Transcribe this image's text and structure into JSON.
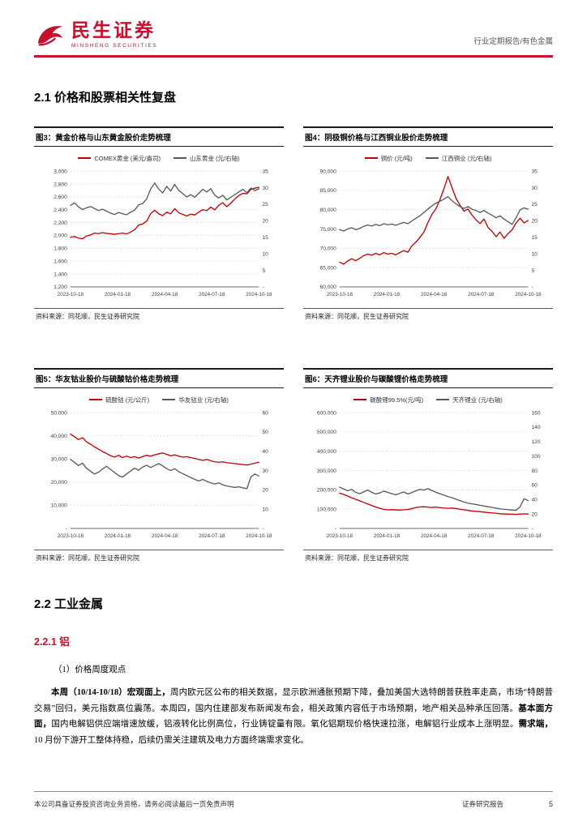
{
  "header": {
    "brand_cn": "民生证券",
    "brand_en": "MINSHENG SECURITIES",
    "report_type": "行业定期报告/有色金属"
  },
  "sections": {
    "s21_title": "2.1 价格和股票相关性复盘",
    "s22_title": "2.2 工业金属",
    "s221_title": "2.2.1 铝",
    "point_title": "（1）价格周度观点"
  },
  "paragraph": {
    "segments": [
      {
        "text": "本周（10/14-10/18）宏观面上，",
        "bold": true
      },
      {
        "text": "周内欧元区公布的相关数据，显示欧洲通胀预期下降，叠加美国大选特朗普获胜率走高，市场“特朗普交易”回归，美元指数高位震荡。本周四，国内住建部发布新闻发布会，相关政策内容低于市场预期，地产相关品种承压回落。",
        "bold": false
      },
      {
        "text": "基本面方面，",
        "bold": true
      },
      {
        "text": "国内电解铝供应端增速放缓，铝液转化比例高位，行业铸锭量有限。氧化铝期现价格快速拉涨，电解铝行业成本上涨明显。",
        "bold": false
      },
      {
        "text": "需求端，",
        "bold": true
      },
      {
        "text": "10 月份下游开工整体持稳，后续仍需关注建筑及电力方面终端需求变化。",
        "bold": false
      }
    ]
  },
  "footer": {
    "left": "本公司具备证券投资咨询业务资格，请务必阅读最后一页免责声明",
    "right": "证券研究报告",
    "page": "5"
  },
  "chart_data": [
    {
      "type": "line",
      "title": "图3：黄金价格与山东黄金股价走势梳理",
      "source": "资料来源：同花顺，民生证券研究院",
      "x_labels": [
        "2023-10-18",
        "2024-01-18",
        "2024-04-18",
        "2024-07-18",
        "2024-10-18"
      ],
      "left_axis": {
        "min": 1200,
        "max": 3000,
        "ticks": [
          "3,000",
          "2,800",
          "2,600",
          "2,400",
          "2,200",
          "2,000",
          "1,800",
          "1,600",
          "1,400",
          "1,200"
        ]
      },
      "right_axis": {
        "min": 0,
        "max": 35,
        "ticks": [
          "35",
          "30",
          "25",
          "20",
          "15",
          "10",
          "5",
          "-"
        ]
      },
      "series": [
        {
          "name": "COMEX黄金 (美元/盎司)",
          "color": "#C00000",
          "axis": "left",
          "values": [
            1972,
            1984,
            1958,
            1948,
            1992,
            2008,
            2036,
            2028,
            2044,
            2032,
            2026,
            2018,
            2028,
            2036,
            2024,
            2052,
            2088,
            2162,
            2178,
            2222,
            2338,
            2392,
            2336,
            2308,
            2362,
            2336,
            2418,
            2352,
            2328,
            2302,
            2332,
            2318,
            2362,
            2402,
            2386,
            2442,
            2398,
            2472,
            2508,
            2448,
            2502,
            2568,
            2622,
            2654,
            2648,
            2716,
            2736,
            2748
          ]
        },
        {
          "name": "山东黄金 (元/右轴)",
          "color": "#595959",
          "axis": "right",
          "values": [
            24.6,
            25.4,
            24.2,
            23.4,
            23.9,
            24.3,
            23.7,
            23.1,
            23.5,
            22.9,
            22.3,
            21.9,
            22.5,
            22.1,
            21.8,
            22.6,
            23.2,
            24.8,
            25.2,
            26.6,
            29.6,
            31.4,
            29.6,
            28.4,
            30.4,
            29.0,
            31.0,
            29.2,
            28.2,
            27.2,
            27.9,
            27.1,
            28.3,
            29.5,
            28.7,
            29.7,
            27.7,
            26.9,
            27.7,
            26.3,
            27.1,
            27.9,
            28.7,
            29.5,
            28.5,
            29.9,
            29.1,
            29.7
          ]
        }
      ]
    },
    {
      "type": "line",
      "title": "图4：阴极铜价格与江西铜业股价走势梳理",
      "source": "资料来源：同花顺，民生证券研究院",
      "x_labels": [
        "2023-10-18",
        "2024-01-18",
        "2024-04-18",
        "2024-07-18",
        "2024-10-18"
      ],
      "left_axis": {
        "min": 60000,
        "max": 90000,
        "ticks": [
          "90,000",
          "85,000",
          "80,000",
          "75,000",
          "70,000",
          "65,000",
          "60,000"
        ]
      },
      "right_axis": {
        "min": 0,
        "max": 35,
        "ticks": [
          "35",
          "30",
          "25",
          "20",
          "15",
          "10",
          "5",
          "-"
        ]
      },
      "series": [
        {
          "name": "铜价 (元/吨)",
          "color": "#C00000",
          "axis": "left",
          "values": [
            66400,
            65900,
            66700,
            67300,
            66800,
            67400,
            68100,
            68500,
            68200,
            68700,
            68300,
            68900,
            68500,
            68700,
            68300,
            68900,
            69400,
            69000,
            70600,
            71600,
            72800,
            74200,
            76600,
            78800,
            80200,
            82600,
            85400,
            88600,
            85800,
            83000,
            81200,
            79600,
            80200,
            78600,
            77400,
            76400,
            77600,
            75400,
            74400,
            73000,
            74200,
            72600,
            73800,
            74800,
            76600,
            77800,
            76600,
            77200
          ]
        },
        {
          "name": "江西铜业 (元/右轴)",
          "color": "#595959",
          "axis": "right",
          "values": [
            17.3,
            16.9,
            17.5,
            17.9,
            17.3,
            17.7,
            18.3,
            18.7,
            18.4,
            18.9,
            18.5,
            19.1,
            18.8,
            19.0,
            18.6,
            19.1,
            19.5,
            19.1,
            19.9,
            20.7,
            21.5,
            22.5,
            23.5,
            24.5,
            25.3,
            25.9,
            26.5,
            27.3,
            26.1,
            25.1,
            24.3,
            23.7,
            24.3,
            23.5,
            23.1,
            22.5,
            23.1,
            22.3,
            21.7,
            20.9,
            21.5,
            20.5,
            19.7,
            18.9,
            20.9,
            23.3,
            23.9,
            23.5
          ]
        }
      ]
    },
    {
      "type": "line",
      "title": "图5：华友钴业股价与硫酸钴价格走势梳理",
      "source": "资料来源：同花顺，民生证券研究院",
      "x_labels": [
        "2023-10-18",
        "2024-01-18",
        "2024-04-18",
        "2024-07-18",
        "2024-10-18"
      ],
      "left_axis": {
        "min": 0,
        "max": 50000,
        "ticks": [
          "50,000",
          "40,000",
          "30,000",
          "20,000",
          "10,000",
          "-"
        ]
      },
      "right_axis": {
        "min": 0,
        "max": 60,
        "ticks": [
          "60",
          "50",
          "40",
          "30",
          "20",
          "10",
          "-"
        ]
      },
      "series": [
        {
          "name": "硫酸钴 (元/公斤)",
          "color": "#C00000",
          "axis": "left",
          "values": [
            40800,
            39600,
            38400,
            39200,
            37400,
            36400,
            35200,
            34200,
            33200,
            32400,
            31400,
            30800,
            31600,
            30600,
            31200,
            30600,
            31000,
            30400,
            31000,
            31600,
            31200,
            31800,
            32200,
            32600,
            32000,
            31400,
            31800,
            31200,
            30800,
            31000,
            30600,
            30200,
            29800,
            29400,
            29800,
            29200,
            28800,
            28600,
            28800,
            28400,
            28200,
            28000,
            27800,
            27600,
            27400,
            27800,
            28200,
            28600
          ]
        },
        {
          "name": "华友钴业 (元/右轴)",
          "color": "#595959",
          "axis": "right",
          "values": [
            35.8,
            34.2,
            32.6,
            33.8,
            31.2,
            29.6,
            28.2,
            29.2,
            30.8,
            32.2,
            30.6,
            29.0,
            27.4,
            26.6,
            28.2,
            29.8,
            31.2,
            30.2,
            31.8,
            32.8,
            31.6,
            32.6,
            33.6,
            32.4,
            31.0,
            30.0,
            31.0,
            29.4,
            28.4,
            27.4,
            26.4,
            25.4,
            24.6,
            25.4,
            24.4,
            23.6,
            23.0,
            23.6,
            22.6,
            22.0,
            21.6,
            21.2,
            21.6,
            21.0,
            20.6,
            26.8,
            28.2,
            27.2
          ]
        }
      ]
    },
    {
      "type": "line",
      "title": "图6：天齐锂业股价与碳酸锂价格走势梳理",
      "source": "资料来源：同花顺，民生证券研究院",
      "x_labels": [
        "2023-10-18",
        "2024-01-18",
        "2024-04-18",
        "2024-07-18",
        "2024-10-18"
      ],
      "left_axis": {
        "min": 0,
        "max": 600000,
        "ticks": [
          "600,000",
          "500,000",
          "400,000",
          "300,000",
          "200,000",
          "100,000",
          "-"
        ]
      },
      "right_axis": {
        "min": 0,
        "max": 160,
        "ticks": [
          "160",
          "140",
          "120",
          "100",
          "80",
          "60",
          "40",
          "20",
          "-"
        ]
      },
      "series": [
        {
          "name": "碳酸锂99.5%(元/吨)",
          "color": "#C00000",
          "axis": "left",
          "values": [
            183000,
            176000,
            168000,
            159000,
            151000,
            143000,
            135000,
            127000,
            119000,
            111000,
            104000,
            99000,
            96500,
            97500,
            96000,
            95000,
            96500,
            98500,
            103000,
            108500,
            111000,
            112500,
            110500,
            109000,
            110500,
            108000,
            106000,
            104000,
            105500,
            103000,
            99500,
            96500,
            93500,
            90500,
            88500,
            86500,
            84500,
            82500,
            80500,
            78500,
            76500,
            75000,
            74000,
            73500,
            73000,
            74500,
            75500,
            74500
          ]
        },
        {
          "name": "天齐锂业 (元/右轴)",
          "color": "#595959",
          "axis": "right",
          "values": [
            57,
            54.5,
            52,
            54,
            50,
            48,
            50.5,
            53,
            50,
            47.5,
            49,
            51.5,
            50,
            48,
            46.5,
            48.5,
            50.5,
            47.5,
            49.5,
            52,
            54,
            53,
            55,
            52.5,
            50,
            48,
            46,
            44,
            42.5,
            40.5,
            38.5,
            36.5,
            35,
            34,
            33,
            32,
            31,
            30,
            29,
            28,
            27,
            26.5,
            26,
            25.5,
            25,
            30,
            41,
            38.5
          ]
        }
      ]
    }
  ]
}
